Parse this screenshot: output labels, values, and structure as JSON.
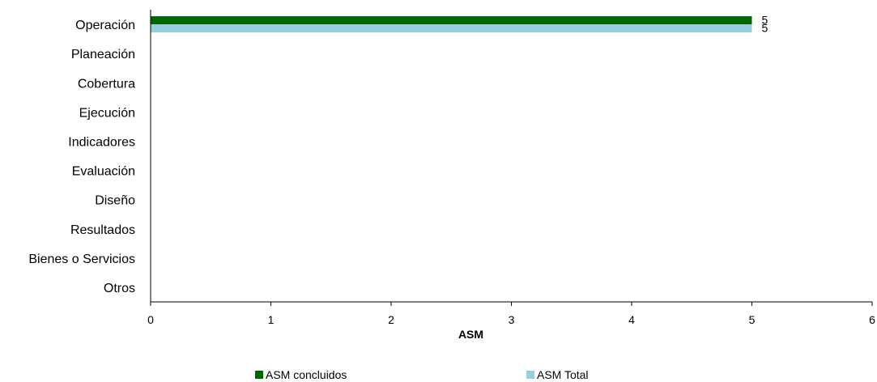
{
  "chart_data": {
    "type": "bar",
    "orientation": "horizontal",
    "categories": [
      "Operación",
      "Planeación",
      "Cobertura",
      "Ejecución",
      "Indicadores",
      "Evaluación",
      "Diseño",
      "Resultados",
      "Bienes o Servicios",
      "Otros"
    ],
    "series": [
      {
        "name": "ASM concluidos",
        "color": "#006600",
        "values": [
          5,
          0,
          0,
          0,
          0,
          0,
          0,
          0,
          0,
          0
        ]
      },
      {
        "name": "ASM Total",
        "color": "#99ccdd",
        "values": [
          5,
          0,
          0,
          0,
          0,
          0,
          0,
          0,
          0,
          0
        ]
      }
    ],
    "data_labels": [
      "5",
      "5"
    ],
    "xlabel": "ASM",
    "xlim": [
      0,
      6
    ],
    "xticks": [
      "0",
      "1",
      "2",
      "3",
      "4",
      "5",
      "6"
    ],
    "grid": false,
    "legend_position": "bottom"
  }
}
